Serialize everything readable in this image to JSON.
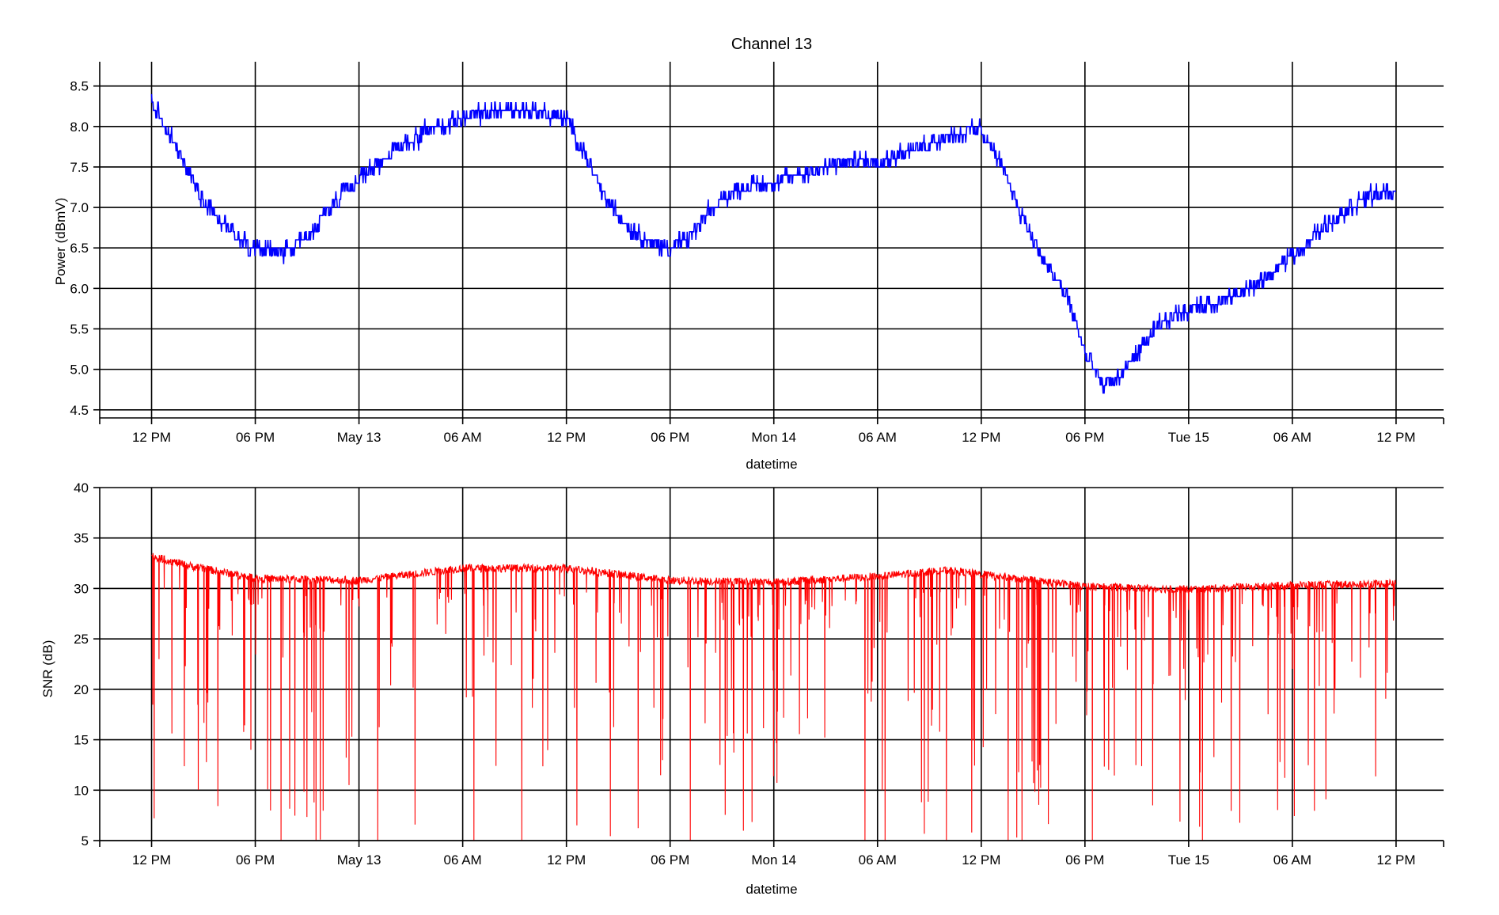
{
  "figure": {
    "title": "Channel 13"
  },
  "chart_data": [
    {
      "type": "line",
      "title": "Channel 13",
      "xlabel": "datetime",
      "ylabel": "Power (dBmV)",
      "xlim": [
        "2018-05-12 09:00",
        "2018-05-15 14:45"
      ],
      "ylim": [
        4.4,
        8.8
      ],
      "x_ticks": [
        "12 PM",
        "06 PM",
        "May 13",
        "06 AM",
        "12 PM",
        "06 PM",
        "Mon 14",
        "06 AM",
        "12 PM",
        "06 PM",
        "Tue 15",
        "06 AM",
        "12 PM"
      ],
      "y_ticks": [
        "4.5",
        "5.0",
        "5.5",
        "6.0",
        "6.5",
        "7.0",
        "7.5",
        "8.0",
        "8.5"
      ],
      "grid": true,
      "series": [
        {
          "color": "#0000ff",
          "x": [
            "2018-05-12 12:00",
            "2018-05-12 13:00",
            "2018-05-12 14:00",
            "2018-05-12 15:00",
            "2018-05-12 16:00",
            "2018-05-12 17:00",
            "2018-05-12 18:00",
            "2018-05-12 19:00",
            "2018-05-12 20:00",
            "2018-05-12 21:00",
            "2018-05-12 22:00",
            "2018-05-12 23:00",
            "2018-05-13 00:00",
            "2018-05-13 02:00",
            "2018-05-13 04:00",
            "2018-05-13 06:00",
            "2018-05-13 08:00",
            "2018-05-13 10:00",
            "2018-05-13 12:00",
            "2018-05-13 13:00",
            "2018-05-13 14:00",
            "2018-05-13 15:00",
            "2018-05-13 16:00",
            "2018-05-13 17:00",
            "2018-05-13 18:00",
            "2018-05-13 19:00",
            "2018-05-13 20:00",
            "2018-05-13 21:00",
            "2018-05-13 22:00",
            "2018-05-14 00:00",
            "2018-05-14 02:00",
            "2018-05-14 04:00",
            "2018-05-14 06:00",
            "2018-05-14 08:00",
            "2018-05-14 10:00",
            "2018-05-14 12:00",
            "2018-05-14 13:00",
            "2018-05-14 14:00",
            "2018-05-14 15:00",
            "2018-05-14 16:00",
            "2018-05-14 17:00",
            "2018-05-14 18:00",
            "2018-05-14 19:00",
            "2018-05-14 20:00",
            "2018-05-14 21:00",
            "2018-05-14 22:00",
            "2018-05-14 23:00",
            "2018-05-15 00:00",
            "2018-05-15 02:00",
            "2018-05-15 04:00",
            "2018-05-15 06:00",
            "2018-05-15 08:00",
            "2018-05-15 10:00",
            "2018-05-15 12:00"
          ],
          "y": [
            8.3,
            7.9,
            7.5,
            7.1,
            6.85,
            6.65,
            6.5,
            6.45,
            6.45,
            6.6,
            6.9,
            7.15,
            7.35,
            7.7,
            7.95,
            8.1,
            8.2,
            8.2,
            8.1,
            7.7,
            7.2,
            6.9,
            6.7,
            6.55,
            6.5,
            6.6,
            6.85,
            7.1,
            7.25,
            7.3,
            7.45,
            7.55,
            7.6,
            7.7,
            7.9,
            7.95,
            7.6,
            7.1,
            6.6,
            6.2,
            5.9,
            5.2,
            4.8,
            4.9,
            5.2,
            5.45,
            5.65,
            5.75,
            5.85,
            6.05,
            6.4,
            6.8,
            7.1,
            7.2
          ],
          "noise": 0.14
        }
      ]
    },
    {
      "type": "line",
      "xlabel": "datetime",
      "ylabel": "SNR (dB)",
      "xlim": [
        "2018-05-12 09:00",
        "2018-05-15 14:45"
      ],
      "ylim": [
        5,
        40
      ],
      "x_ticks": [
        "12 PM",
        "06 PM",
        "May 13",
        "06 AM",
        "12 PM",
        "06 PM",
        "Mon 14",
        "06 AM",
        "12 PM",
        "06 PM",
        "Tue 15",
        "06 AM",
        "12 PM"
      ],
      "y_ticks": [
        "5",
        "10",
        "15",
        "20",
        "25",
        "30",
        "35",
        "40"
      ],
      "grid": true,
      "series": [
        {
          "color": "#ff0000",
          "x": [
            "2018-05-12 12:00",
            "2018-05-12 14:00",
            "2018-05-12 18:00",
            "2018-05-13 00:00",
            "2018-05-13 06:00",
            "2018-05-13 12:00",
            "2018-05-13 18:00",
            "2018-05-14 00:00",
            "2018-05-14 06:00",
            "2018-05-14 10:00",
            "2018-05-14 12:00",
            "2018-05-14 18:00",
            "2018-05-15 00:00",
            "2018-05-15 06:00",
            "2018-05-15 12:00"
          ],
          "y": [
            33.2,
            32.3,
            31.0,
            30.8,
            32.0,
            32.0,
            30.8,
            30.6,
            31.2,
            31.8,
            31.4,
            30.2,
            29.9,
            30.3,
            30.5
          ],
          "dip_rate": 0.12,
          "min": 5
        }
      ]
    }
  ]
}
